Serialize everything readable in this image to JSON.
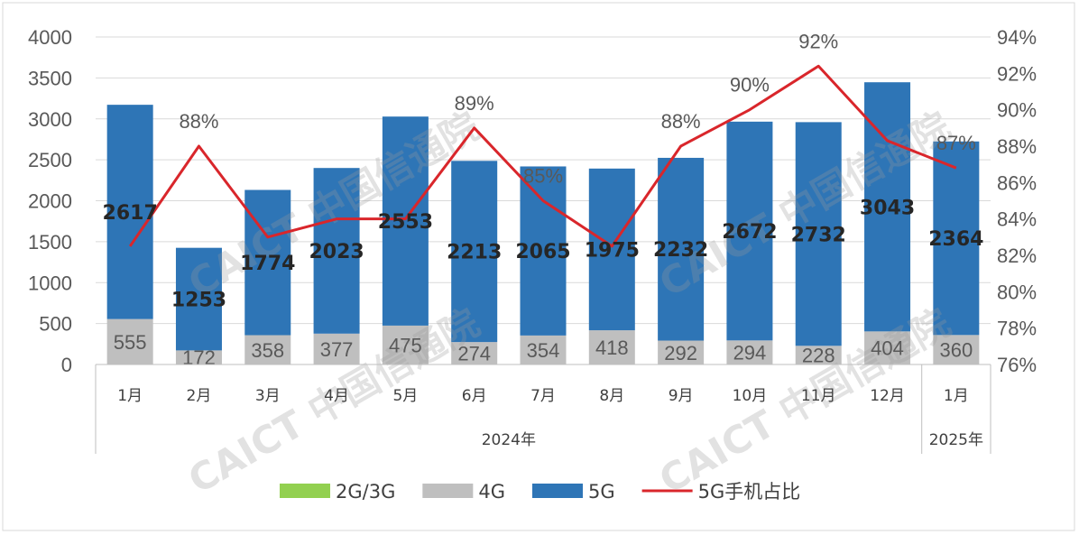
{
  "chart_data": {
    "type": "bar",
    "stacked": true,
    "categories": [
      "1月",
      "2月",
      "3月",
      "4月",
      "5月",
      "6月",
      "7月",
      "8月",
      "9月",
      "10月",
      "11月",
      "12月",
      "1月"
    ],
    "groups": [
      {
        "label": "2024年",
        "from": 0,
        "to": 11
      },
      {
        "label": "2025年",
        "from": 12,
        "to": 12
      }
    ],
    "series": [
      {
        "name": "2G/3G",
        "color": "#92D050",
        "values": [
          0,
          0,
          0,
          0,
          0,
          0,
          0,
          0,
          0,
          0,
          0,
          0,
          0
        ]
      },
      {
        "name": "4G",
        "color": "#BFBFBF",
        "values": [
          555,
          172,
          358,
          377,
          475,
          274,
          354,
          418,
          292,
          294,
          228,
          404,
          360
        ]
      },
      {
        "name": "5G",
        "color": "#2E75B6",
        "values": [
          2617,
          1253,
          1774,
          2023,
          2553,
          2213,
          2065,
          1975,
          2232,
          2672,
          2732,
          3043,
          2364
        ]
      },
      {
        "name": "5G手机占比",
        "color": "#D9262B",
        "type": "line",
        "axis": "right",
        "values": [
          82.5,
          88,
          83,
          84,
          84,
          89,
          85,
          82.5,
          88,
          90,
          92.4,
          88.3,
          86.8
        ]
      }
    ],
    "share_labels": [
      {
        "index": 1,
        "text": "88%"
      },
      {
        "index": 5,
        "text": "89%"
      },
      {
        "index": 6,
        "text": "85%"
      },
      {
        "index": 8,
        "text": "88%"
      },
      {
        "index": 9,
        "text": "90%"
      },
      {
        "index": 10,
        "text": "92%"
      },
      {
        "index": 12,
        "text": "87%"
      }
    ],
    "y_left": {
      "min": 0,
      "max": 4000,
      "step": 500
    },
    "y_right": {
      "min": 76,
      "max": 94,
      "step": 2,
      "suffix": "%"
    },
    "grid": true,
    "legend_position": "bottom"
  },
  "watermark": "CAICT 中国信通院"
}
